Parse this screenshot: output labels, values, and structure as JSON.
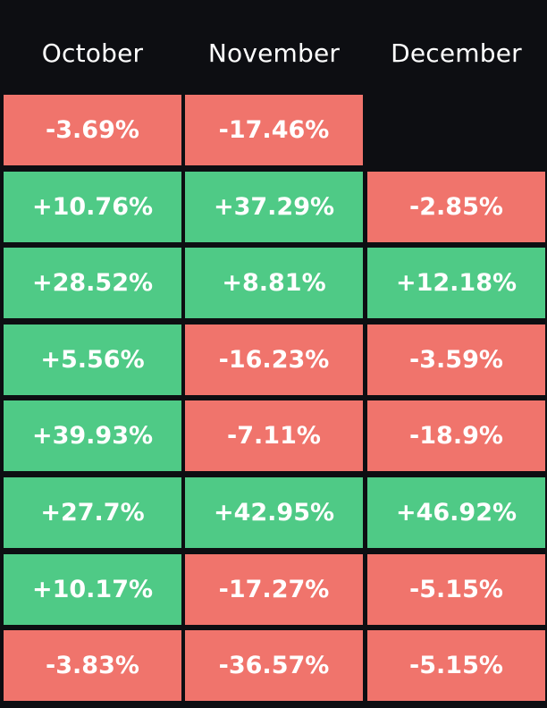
{
  "chart_data": {
    "type": "heatmap",
    "columns": [
      "October",
      "November",
      "December"
    ],
    "rows": [
      [
        "-3.69%",
        "-17.46%",
        ""
      ],
      [
        "+10.76%",
        "+37.29%",
        "-2.85%"
      ],
      [
        "+28.52%",
        "+8.81%",
        "+12.18%"
      ],
      [
        "+5.56%",
        "-16.23%",
        "-3.59%"
      ],
      [
        "+39.93%",
        "-7.11%",
        "-18.9%"
      ],
      [
        "+27.7%",
        "+42.95%",
        "+46.92%"
      ],
      [
        "+10.17%",
        "-17.27%",
        "-5.15%"
      ],
      [
        "-3.83%",
        "-36.57%",
        "-5.15%"
      ]
    ],
    "values": [
      [
        -3.69,
        -17.46,
        null
      ],
      [
        10.76,
        37.29,
        -2.85
      ],
      [
        28.52,
        8.81,
        12.18
      ],
      [
        5.56,
        -16.23,
        -3.59
      ],
      [
        39.93,
        -7.11,
        -18.9
      ],
      [
        27.7,
        42.95,
        46.92
      ],
      [
        10.17,
        -17.27,
        -5.15
      ],
      [
        -3.83,
        -36.57,
        -5.15
      ]
    ],
    "colors": {
      "background": "#0d0e12",
      "positive": "#4fca86",
      "negative": "#f0746c",
      "text": "#ffffff"
    }
  }
}
